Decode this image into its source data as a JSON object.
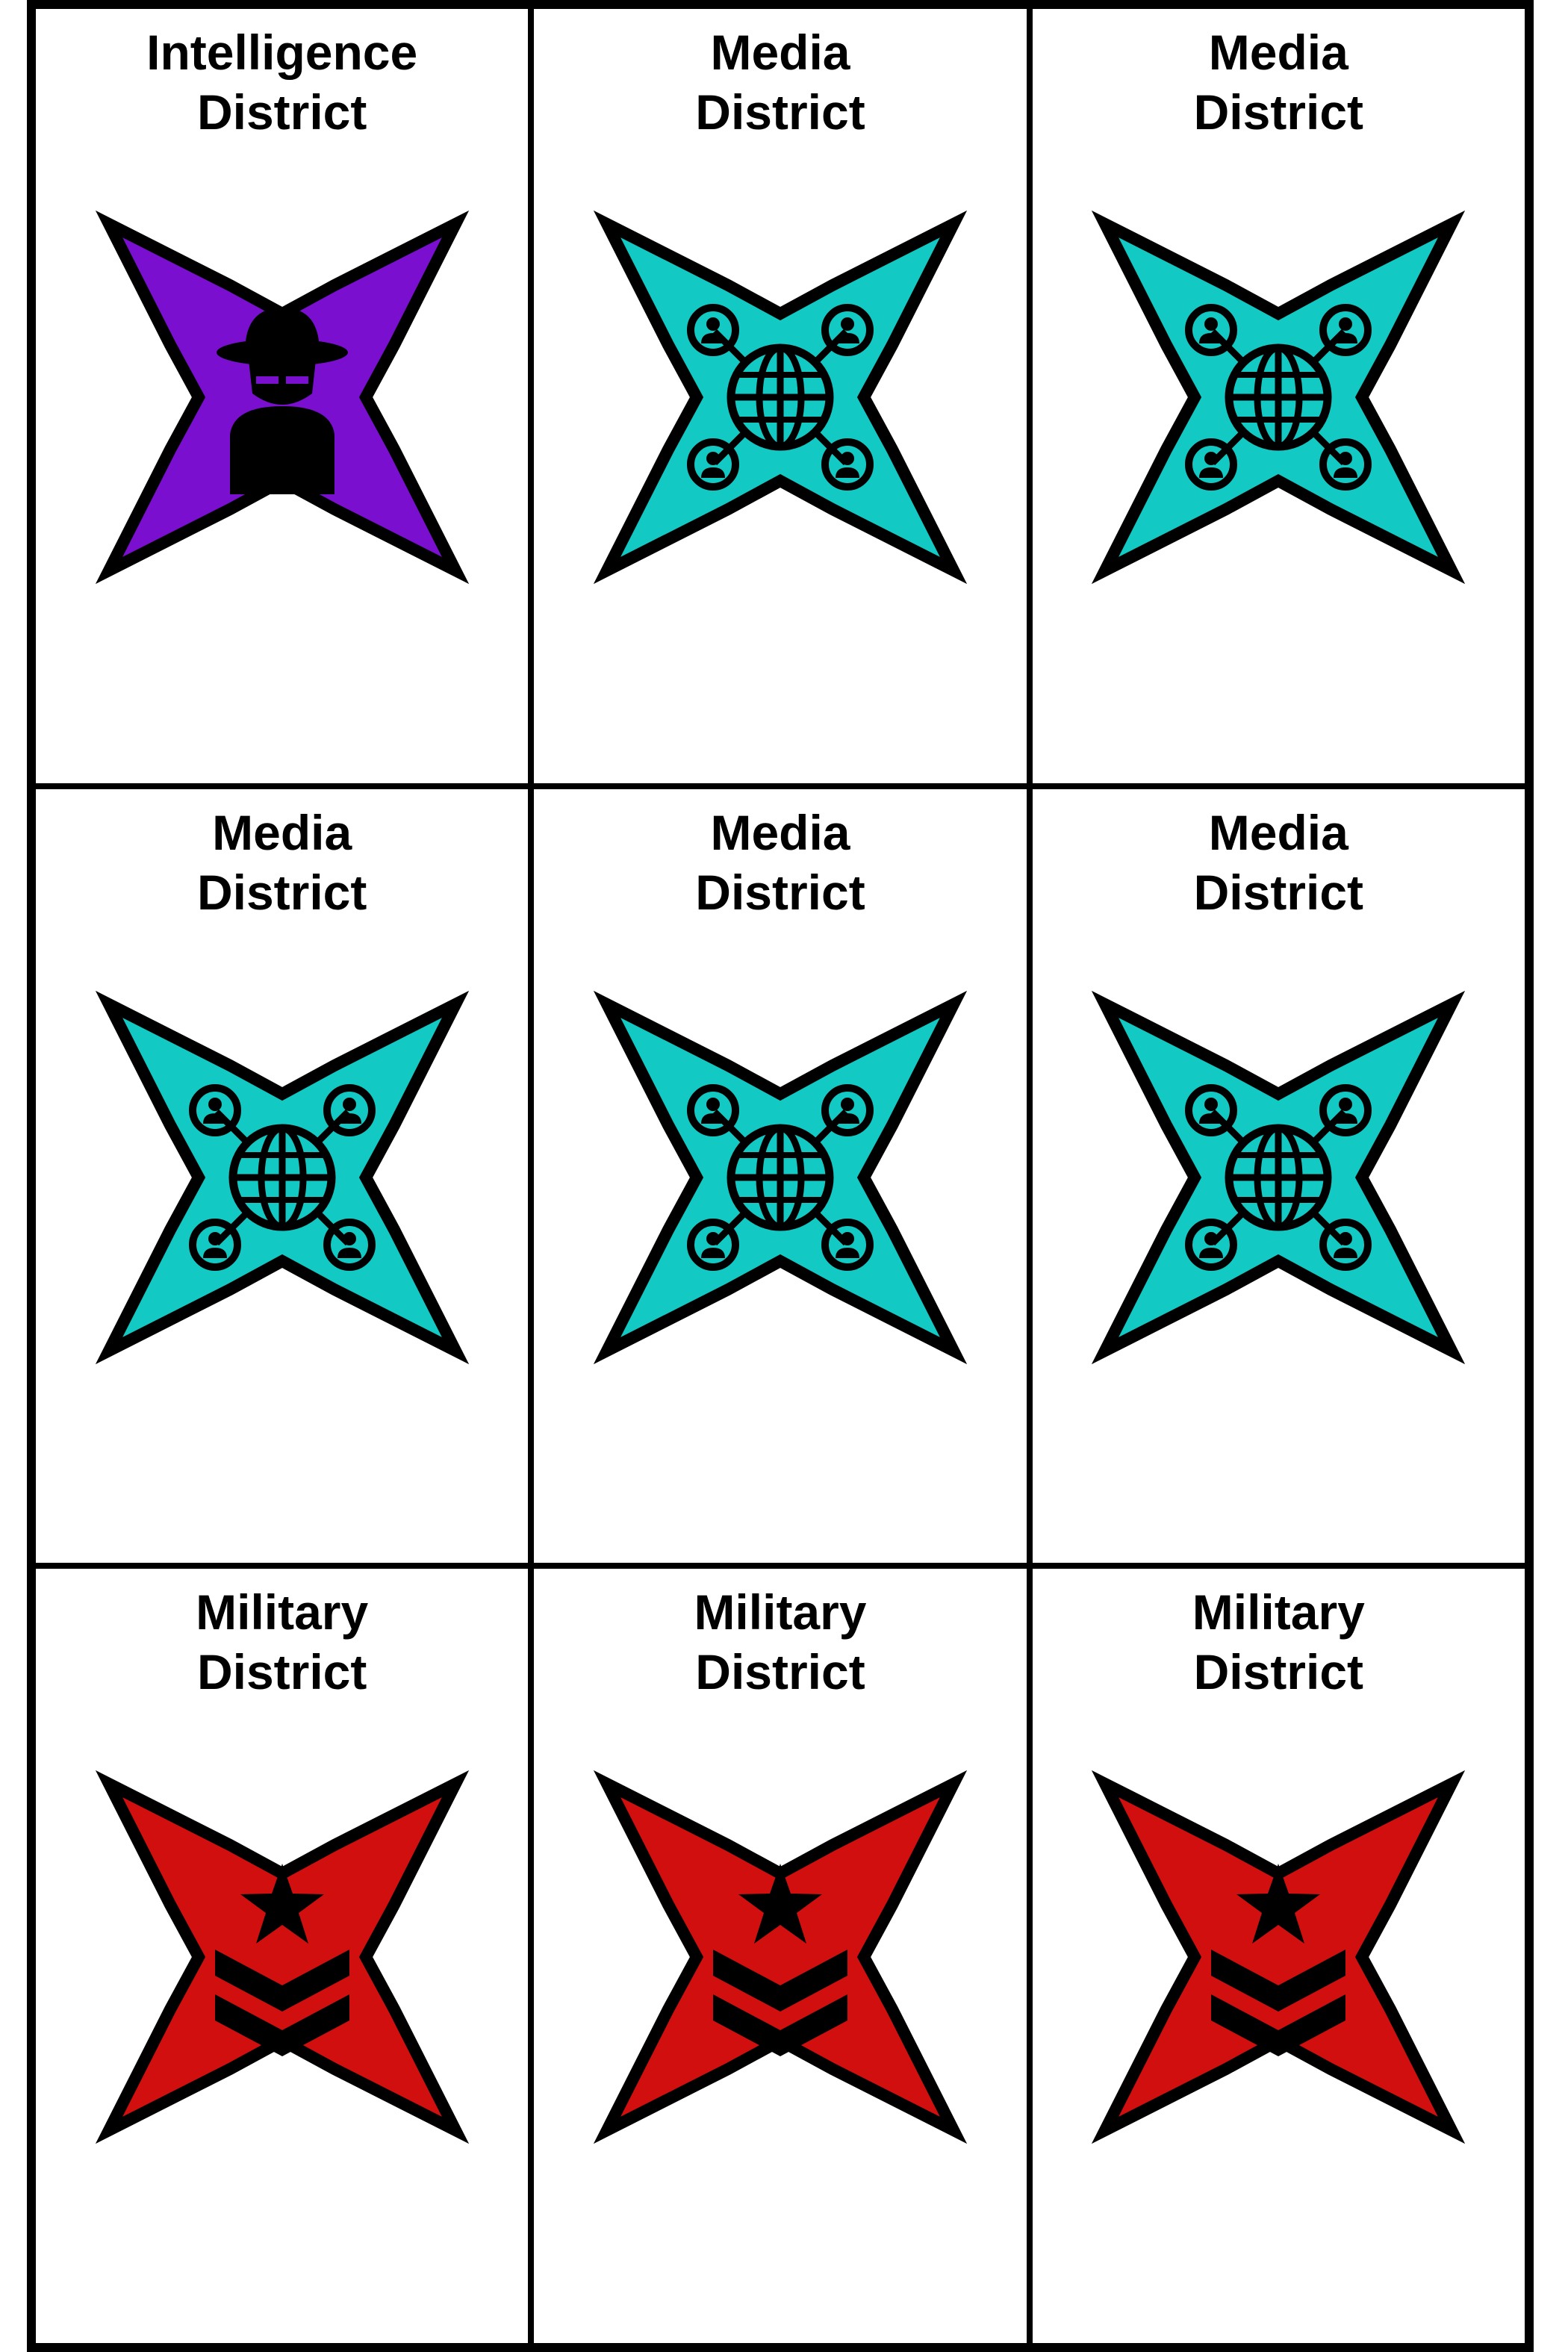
{
  "cards": [
    {
      "line1": "Intelligence",
      "line2": "District",
      "type": "intelligence",
      "icon": "spy-icon",
      "color": "#7a0fcf"
    },
    {
      "line1": "Media",
      "line2": "District",
      "type": "media",
      "icon": "network-globe-icon",
      "color": "#12c9c4"
    },
    {
      "line1": "Media",
      "line2": "District",
      "type": "media",
      "icon": "network-globe-icon",
      "color": "#12c9c4"
    },
    {
      "line1": "Media",
      "line2": "District",
      "type": "media",
      "icon": "network-globe-icon",
      "color": "#12c9c4"
    },
    {
      "line1": "Media",
      "line2": "District",
      "type": "media",
      "icon": "network-globe-icon",
      "color": "#12c9c4"
    },
    {
      "line1": "Media",
      "line2": "District",
      "type": "media",
      "icon": "network-globe-icon",
      "color": "#12c9c4"
    },
    {
      "line1": "Military",
      "line2": "District",
      "type": "military",
      "icon": "military-rank-icon",
      "color": "#d10f0f"
    },
    {
      "line1": "Military",
      "line2": "District",
      "type": "military",
      "icon": "military-rank-icon",
      "color": "#d10f0f"
    },
    {
      "line1": "Military",
      "line2": "District",
      "type": "military",
      "icon": "military-rank-icon",
      "color": "#d10f0f"
    }
  ]
}
